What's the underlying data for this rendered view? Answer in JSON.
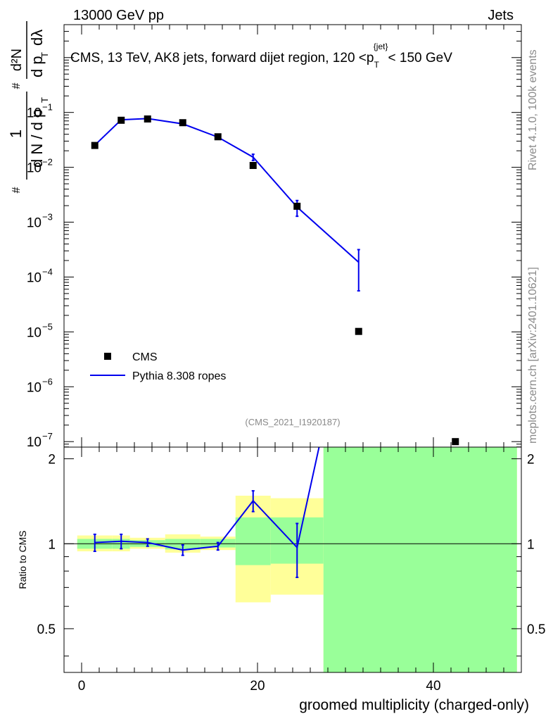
{
  "header": {
    "energy_label": "13000 GeV pp",
    "category_label": "Jets"
  },
  "side": {
    "rivet_label": "Rivet 4.1.0,  100k events",
    "mcplots_label": "mcplots.cern.ch [arXiv:2401.10621]"
  },
  "colors": {
    "mc": "#0000ee",
    "data": "#000000",
    "band_yellow": "#ffff99",
    "band_green": "#99ff99"
  },
  "chart_data": [
    {
      "type": "scatter",
      "panel": "main",
      "title": "CMS, 13 TeV, AK8 jets, forward dijet region, 120 <p_T^{jet}< 150 GeV",
      "title_parts": {
        "pre": "CMS, 13 TeV, AK8 jets, forward dijet region, 120 <p",
        "sub": "T",
        "sup": "{jet}",
        "post": "< 150 GeV"
      },
      "ylabel": "1/(dN/dp_T) d²N/(dp_T dλ)",
      "ylabel_parts": {
        "one": "1",
        "hash": "#",
        "d": "d",
        "N": "N",
        "slash": "/",
        "p": "p",
        "T": "T",
        "d2N": "d²N",
        "lambda": "dλ"
      },
      "xlim": [
        -2,
        50
      ],
      "ylim_log10": [
        -7.1,
        0.6
      ],
      "yscale": "log",
      "ytick_labels": [
        {
          "exp": -1,
          "label": "10",
          "sup": "−1"
        },
        {
          "exp": -2,
          "label": "10",
          "sup": "−2"
        },
        {
          "exp": -3,
          "label": "10",
          "sup": "−3"
        },
        {
          "exp": -4,
          "label": "10",
          "sup": "−4"
        },
        {
          "exp": -5,
          "label": "10",
          "sup": "−5"
        },
        {
          "exp": -6,
          "label": "10",
          "sup": "−6"
        },
        {
          "exp": -7,
          "label": "10",
          "sup": "−7"
        }
      ],
      "watermark": "(CMS_2021_I1920187)",
      "legend": {
        "position": "bottom-left",
        "entries": [
          "CMS",
          "Pythia 8.308 ropes"
        ]
      },
      "series": [
        {
          "name": "CMS",
          "style": "square-marker",
          "x": [
            1.5,
            4.5,
            7.5,
            11.5,
            15.5,
            19.5,
            24.5,
            31.5,
            42.5
          ],
          "y": [
            0.025,
            0.072,
            0.076,
            0.065,
            0.036,
            0.0108,
            0.00195,
            1.02e-05,
            1e-07
          ],
          "x_err": [
            1.5,
            1.5,
            1.5,
            2.5,
            1.5,
            2.5,
            2.5,
            4.5,
            7.5
          ]
        },
        {
          "name": "Pythia 8.308 ropes",
          "style": "line",
          "x": [
            1.5,
            4.5,
            7.5,
            11.5,
            15.5,
            19.5,
            24.5,
            31.5
          ],
          "y": [
            0.0253,
            0.0735,
            0.0772,
            0.0619,
            0.0355,
            0.0153,
            0.00188,
            0.000186
          ],
          "y_err_low": [
            0.001,
            0.002,
            0.002,
            0.002,
            0.001,
            0.002,
            0.0006,
            0.00013
          ],
          "y_err_high": [
            0.001,
            0.002,
            0.002,
            0.002,
            0.001,
            0.002,
            0.0006,
            0.00013
          ]
        }
      ]
    },
    {
      "type": "line",
      "panel": "ratio",
      "ylabel": "Ratio to CMS",
      "xlabel": "groomed multiplicity (charged-only)",
      "xlim": [
        -2,
        50
      ],
      "ylim": [
        0.35,
        2.2
      ],
      "ytick_labels": [
        "0.5",
        "1",
        "2"
      ],
      "yticks": [
        0.5,
        1,
        2
      ],
      "xtick_labels": [
        "0",
        "20",
        "40"
      ],
      "xticks": [
        0,
        20,
        40
      ],
      "bins": [
        {
          "lo": -0.5,
          "hi": 3.5,
          "yellow": [
            0.94,
            1.07
          ],
          "green": [
            0.96,
            1.04
          ]
        },
        {
          "lo": 3.5,
          "hi": 5.5,
          "yellow": [
            0.94,
            1.07
          ],
          "green": [
            0.96,
            1.04
          ]
        },
        {
          "lo": 5.5,
          "hi": 9.5,
          "yellow": [
            0.96,
            1.05
          ],
          "green": [
            0.975,
            1.03
          ]
        },
        {
          "lo": 9.5,
          "hi": 13.5,
          "yellow": [
            0.93,
            1.08
          ],
          "green": [
            0.955,
            1.04
          ]
        },
        {
          "lo": 13.5,
          "hi": 17.5,
          "yellow": [
            0.95,
            1.06
          ],
          "green": [
            0.97,
            1.04
          ]
        },
        {
          "lo": 17.5,
          "hi": 21.5,
          "yellow": [
            0.62,
            1.48
          ],
          "green": [
            0.84,
            1.24
          ]
        },
        {
          "lo": 21.5,
          "hi": 27.5,
          "yellow": [
            0.66,
            1.45
          ],
          "green": [
            0.85,
            1.24
          ]
        },
        {
          "lo": 27.5,
          "hi": 49.5,
          "yellow": [
            0.35,
            2.2
          ],
          "green": [
            0.35,
            2.2
          ]
        }
      ],
      "series": [
        {
          "name": "Pythia 8.308 ropes",
          "x": [
            1.5,
            4.5,
            7.5,
            11.5,
            15.5,
            19.5,
            24.5,
            27.0
          ],
          "y": [
            1.01,
            1.02,
            1.01,
            0.95,
            0.98,
            1.42,
            0.97,
            2.2
          ],
          "y_err_low": [
            0.07,
            0.06,
            0.03,
            0.04,
            0.03,
            0.12,
            0.21,
            0
          ],
          "y_err_high": [
            0.07,
            0.06,
            0.03,
            0.04,
            0.03,
            0.12,
            0.21,
            0
          ]
        }
      ],
      "reference_line": 1
    }
  ]
}
